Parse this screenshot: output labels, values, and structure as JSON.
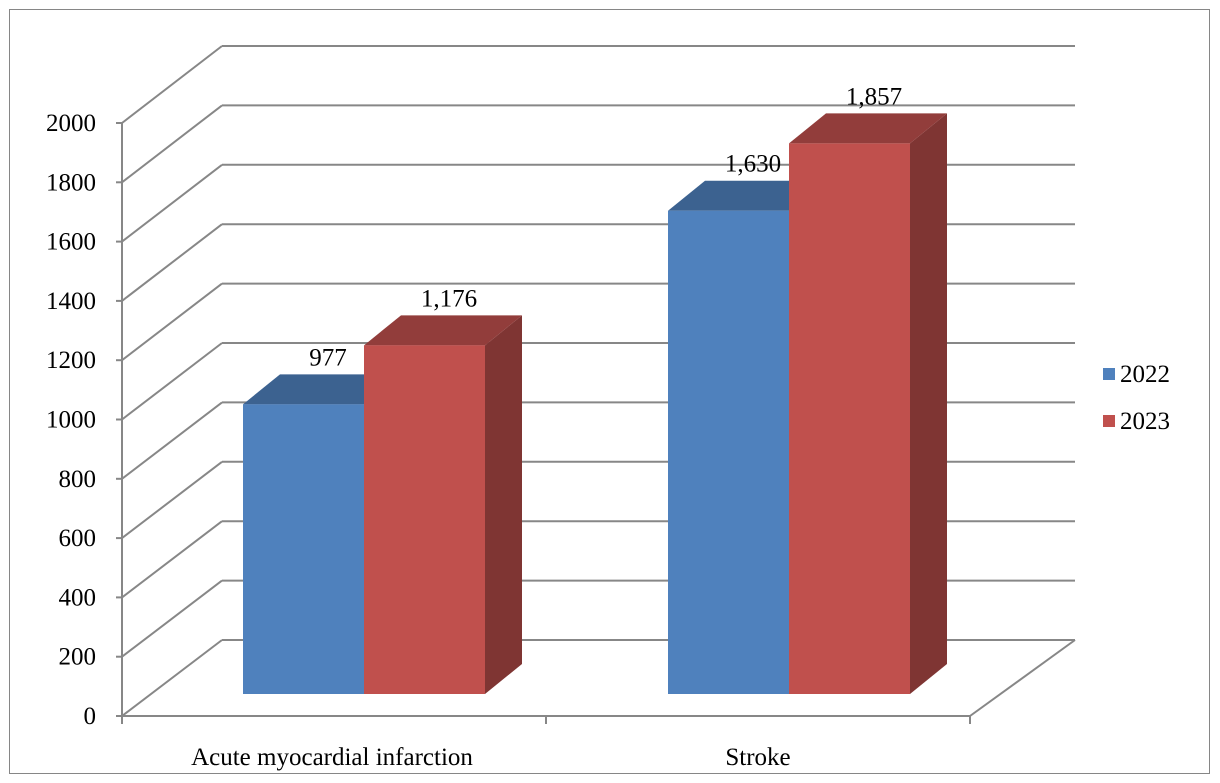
{
  "chart_data": {
    "type": "bar",
    "categories": [
      "Acute myocardial infarction",
      "Stroke"
    ],
    "series": [
      {
        "name": "2022",
        "values": [
          977,
          1630
        ],
        "color": "#4F81BD"
      },
      {
        "name": "2023",
        "values": [
          1176,
          1857
        ],
        "color": "#C0504D"
      }
    ],
    "data_labels": [
      [
        "977",
        "1,630"
      ],
      [
        "1,176",
        "1,857"
      ]
    ],
    "title": "",
    "xlabel": "",
    "ylabel": "",
    "ylim": [
      0,
      2000
    ],
    "yticks": [
      "0",
      "200",
      "400",
      "600",
      "800",
      "1000",
      "1200",
      "1400",
      "1600",
      "1800",
      "2000"
    ],
    "grid": true,
    "legend": "right",
    "style": "3d-column"
  }
}
